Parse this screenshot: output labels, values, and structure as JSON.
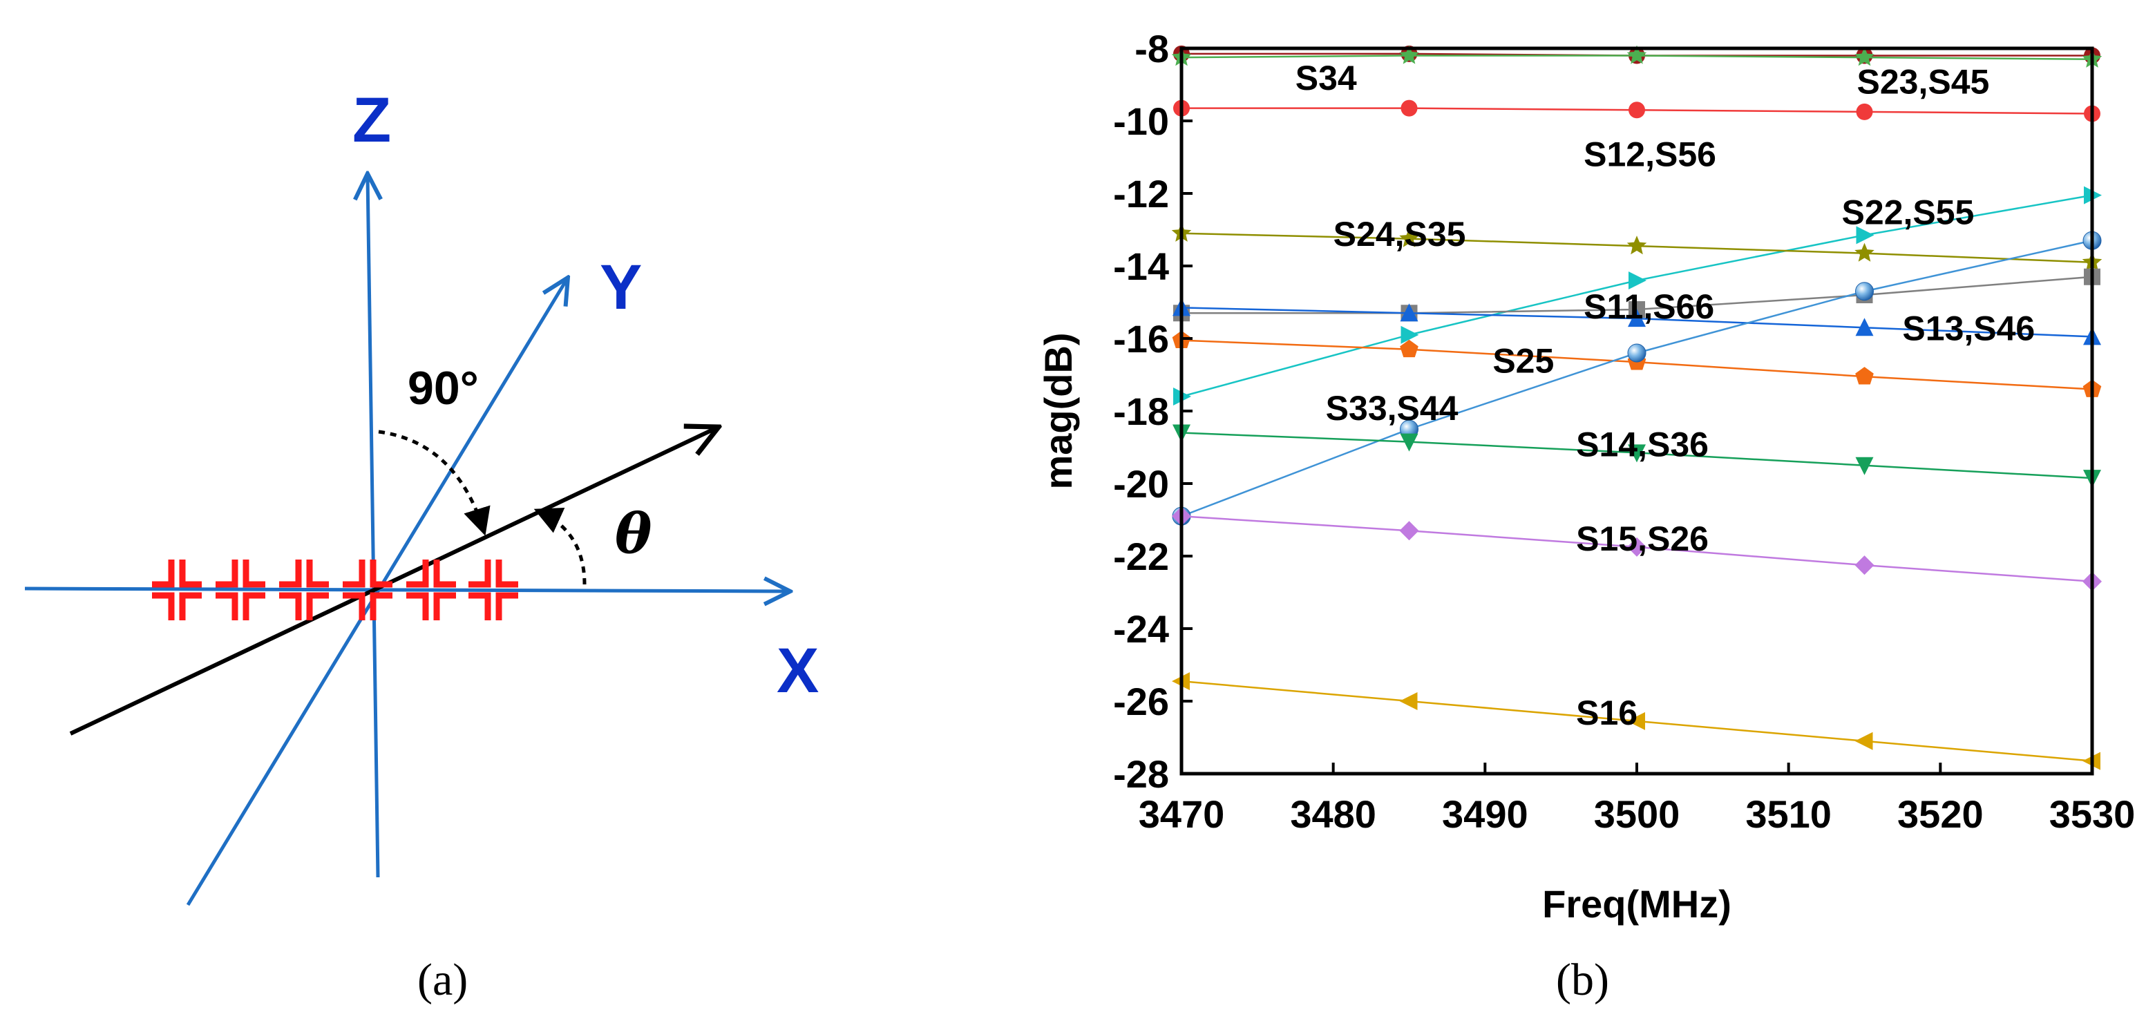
{
  "panel_a": {
    "label": "(a)",
    "axis_z": "Z",
    "axis_y": "Y",
    "axis_x": "X",
    "angle_label": "90°",
    "theta_label": "θ"
  },
  "panel_b": {
    "label": "(b)"
  },
  "colors": {
    "axis_blue": "#1f6fc4",
    "axis_letter": "#0b2fc7",
    "element_red": "#ff1a1a"
  },
  "chart_data": {
    "type": "line",
    "xlabel": "Freq(MHz)",
    "ylabel": "mag(dB)",
    "xlim": [
      3470,
      3530
    ],
    "ylim": [
      -28,
      -8
    ],
    "xticks": [
      3470,
      3480,
      3490,
      3500,
      3510,
      3520,
      3530
    ],
    "yticks": [
      -8,
      -10,
      -12,
      -14,
      -16,
      -18,
      -20,
      -22,
      -24,
      -26,
      -28
    ],
    "x": [
      3470,
      3485,
      3500,
      3515,
      3530
    ],
    "grid": false,
    "series": [
      {
        "name": "S34",
        "color": "#9b1b1b",
        "marker": "circle",
        "values": [
          -8.15,
          -8.15,
          -8.2,
          -8.2,
          -8.2
        ]
      },
      {
        "name": "S23,S45",
        "color": "#4caf50",
        "marker": "star",
        "values": [
          -8.25,
          -8.2,
          -8.2,
          -8.25,
          -8.3
        ]
      },
      {
        "name": "S12,S56",
        "color": "#f03a3a",
        "marker": "circle",
        "values": [
          -9.65,
          -9.65,
          -9.7,
          -9.75,
          -9.8
        ]
      },
      {
        "name": "S22,S55",
        "color": "#17c4c4",
        "marker": "triangle-right",
        "values": [
          -17.6,
          -15.9,
          -14.4,
          -13.15,
          -12.05
        ]
      },
      {
        "name": "S24,S35",
        "color": "#8f8f00",
        "marker": "star",
        "values": [
          -13.1,
          -13.25,
          -13.45,
          -13.65,
          -13.9
        ]
      },
      {
        "name": "S11,S66",
        "color": "#808080",
        "marker": "square",
        "values": [
          -15.3,
          -15.3,
          -15.2,
          -14.8,
          -14.3
        ]
      },
      {
        "name": "S13,S46",
        "color": "#1565d8",
        "marker": "triangle-up",
        "values": [
          -15.15,
          -15.3,
          -15.45,
          -15.7,
          -15.95
        ]
      },
      {
        "name": "S25",
        "color": "#f26b12",
        "marker": "pentagon",
        "values": [
          -16.05,
          -16.3,
          -16.65,
          -17.05,
          -17.4
        ]
      },
      {
        "name": "S33,S44",
        "color": "#3f93d6",
        "marker": "sphere",
        "values": [
          -20.9,
          -18.5,
          -16.4,
          -14.7,
          -13.3
        ]
      },
      {
        "name": "S14,S36",
        "color": "#16a05a",
        "marker": "triangle-down",
        "values": [
          -18.6,
          -18.85,
          -19.15,
          -19.5,
          -19.85
        ]
      },
      {
        "name": "S15,S26",
        "color": "#c07ae0",
        "marker": "diamond",
        "values": [
          -20.9,
          -21.3,
          -21.75,
          -22.25,
          -22.7
        ]
      },
      {
        "name": "S16",
        "color": "#dba400",
        "marker": "triangle-left",
        "values": [
          -25.45,
          -26.0,
          -26.55,
          -27.1,
          -27.65
        ]
      }
    ],
    "annotations": [
      {
        "text": "S34",
        "x": 3477.5,
        "y": -8.8
      },
      {
        "text": "S23,S45",
        "x": 3514.5,
        "y": -8.9
      },
      {
        "text": "S12,S56",
        "x": 3496.5,
        "y": -10.9
      },
      {
        "text": "S22,S55",
        "x": 3513.5,
        "y": -12.5
      },
      {
        "text": "S24,S35",
        "x": 3480,
        "y": -13.1
      },
      {
        "text": "S11,S66",
        "x": 3496.5,
        "y": -15.1
      },
      {
        "text": "S13,S46",
        "x": 3517.5,
        "y": -15.7
      },
      {
        "text": "S25",
        "x": 3490.5,
        "y": -16.6
      },
      {
        "text": "S33,S44",
        "x": 3479.5,
        "y": -17.9
      },
      {
        "text": "S14,S36",
        "x": 3496,
        "y": -18.9
      },
      {
        "text": "S15,S26",
        "x": 3496,
        "y": -21.5
      },
      {
        "text": "S16",
        "x": 3496,
        "y": -26.3
      }
    ]
  }
}
